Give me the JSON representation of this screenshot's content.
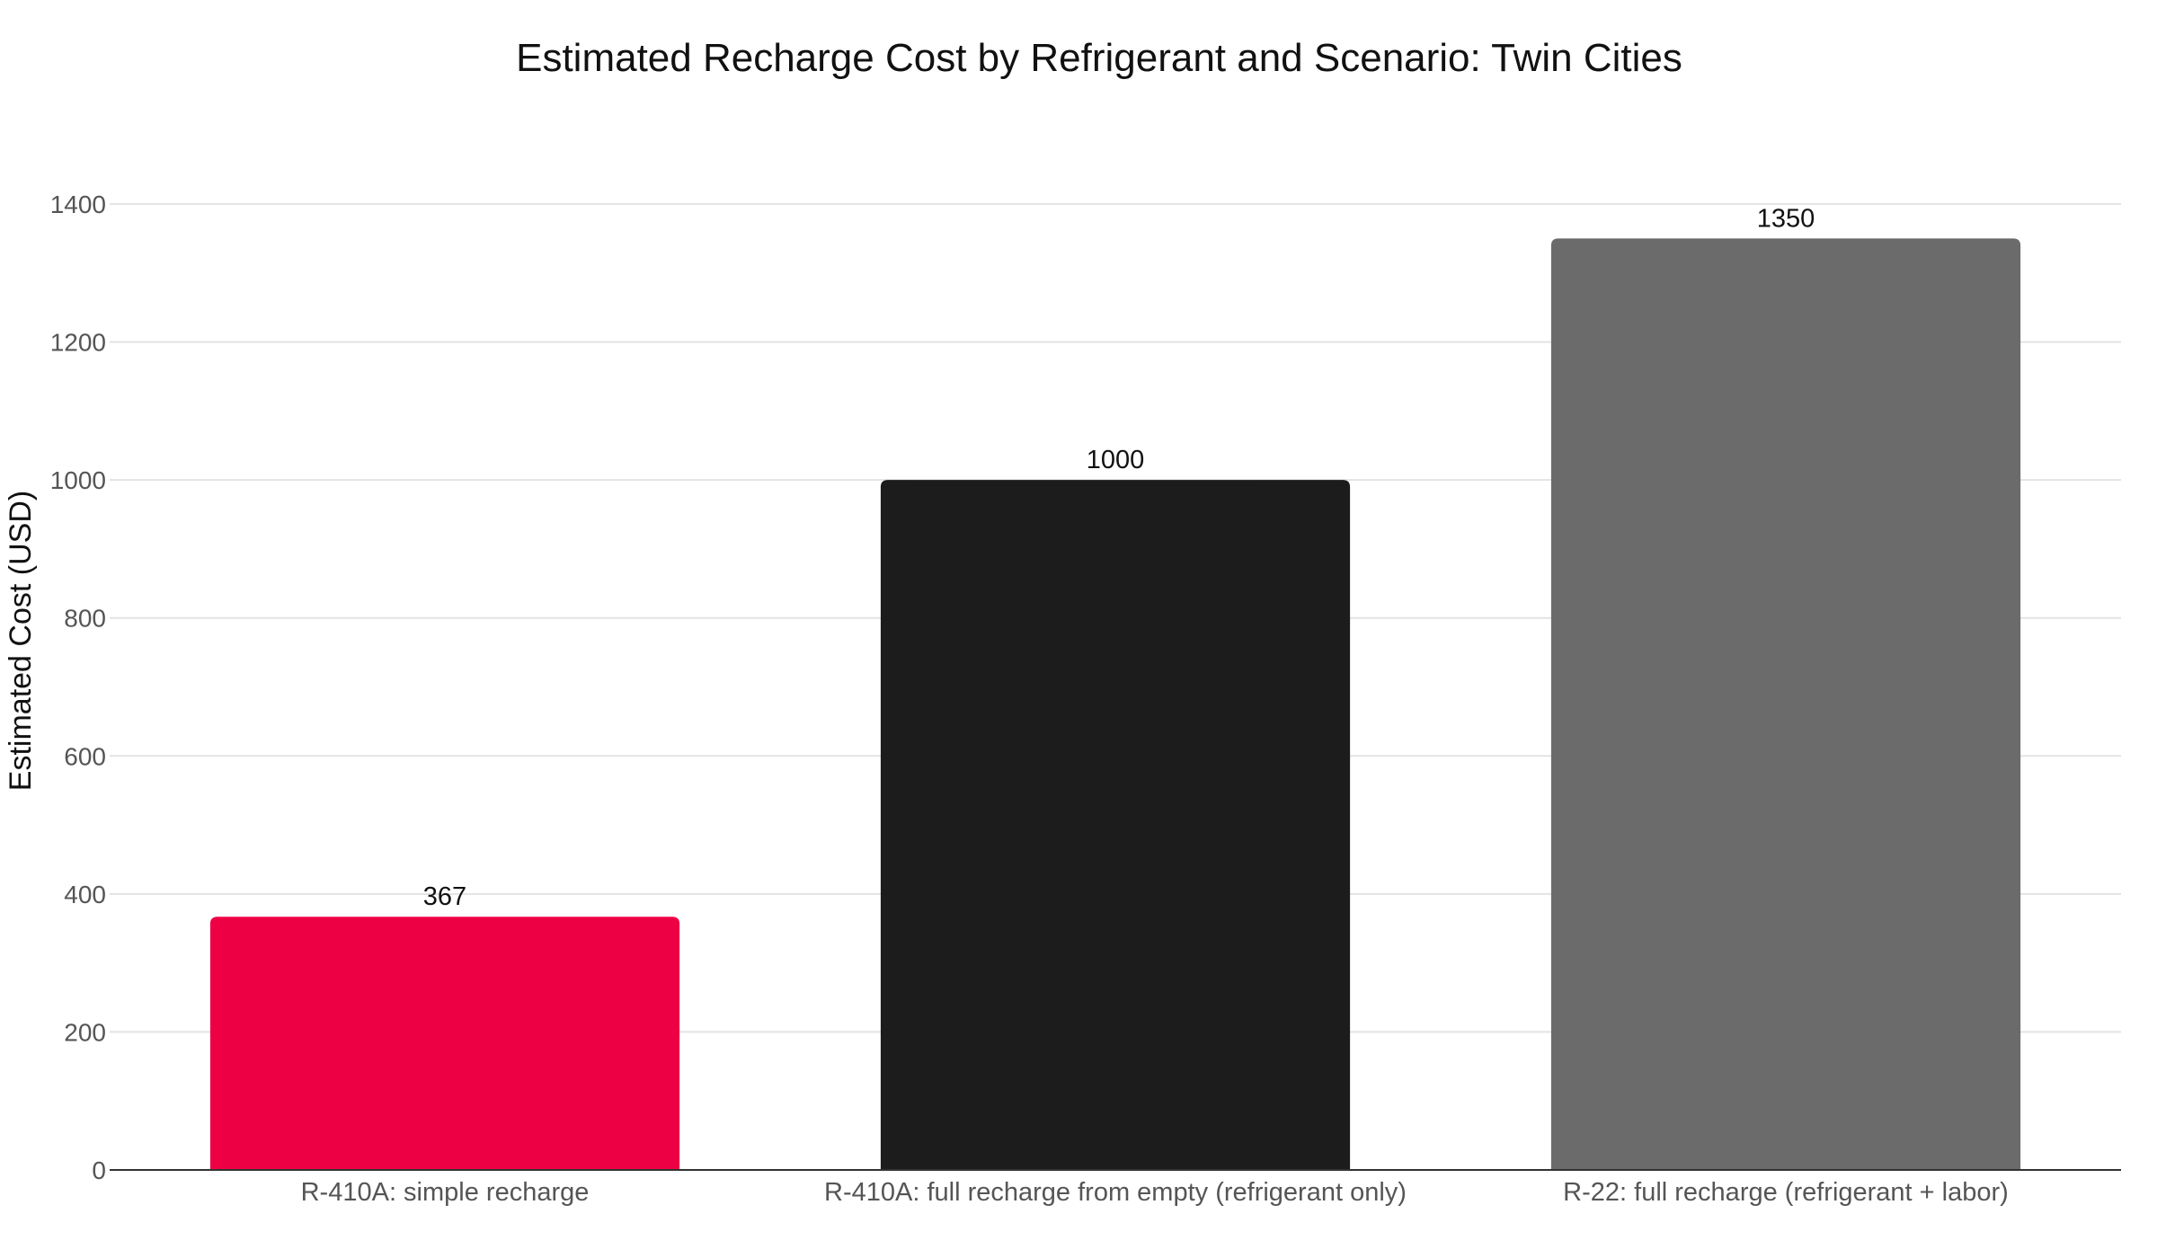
{
  "chart_data": {
    "type": "bar",
    "title": "Estimated Recharge Cost by Refrigerant and Scenario: Twin Cities",
    "xlabel": "",
    "ylabel": "Estimated Cost (USD)",
    "categories": [
      "R-410A: simple recharge",
      "R-410A: full recharge from empty (refrigerant only)",
      "R-22: full recharge (refrigerant + labor)"
    ],
    "values": [
      367,
      1000,
      1350
    ],
    "data_labels": [
      "367",
      "1000",
      "1350"
    ],
    "colors": [
      "#ee0045",
      "#1c1c1c",
      "#6b6b6b"
    ],
    "ylim": [
      0,
      1400
    ],
    "yticks": [
      0,
      200,
      400,
      600,
      800,
      1000,
      1200,
      1400
    ],
    "grid": true,
    "legend": "none"
  }
}
